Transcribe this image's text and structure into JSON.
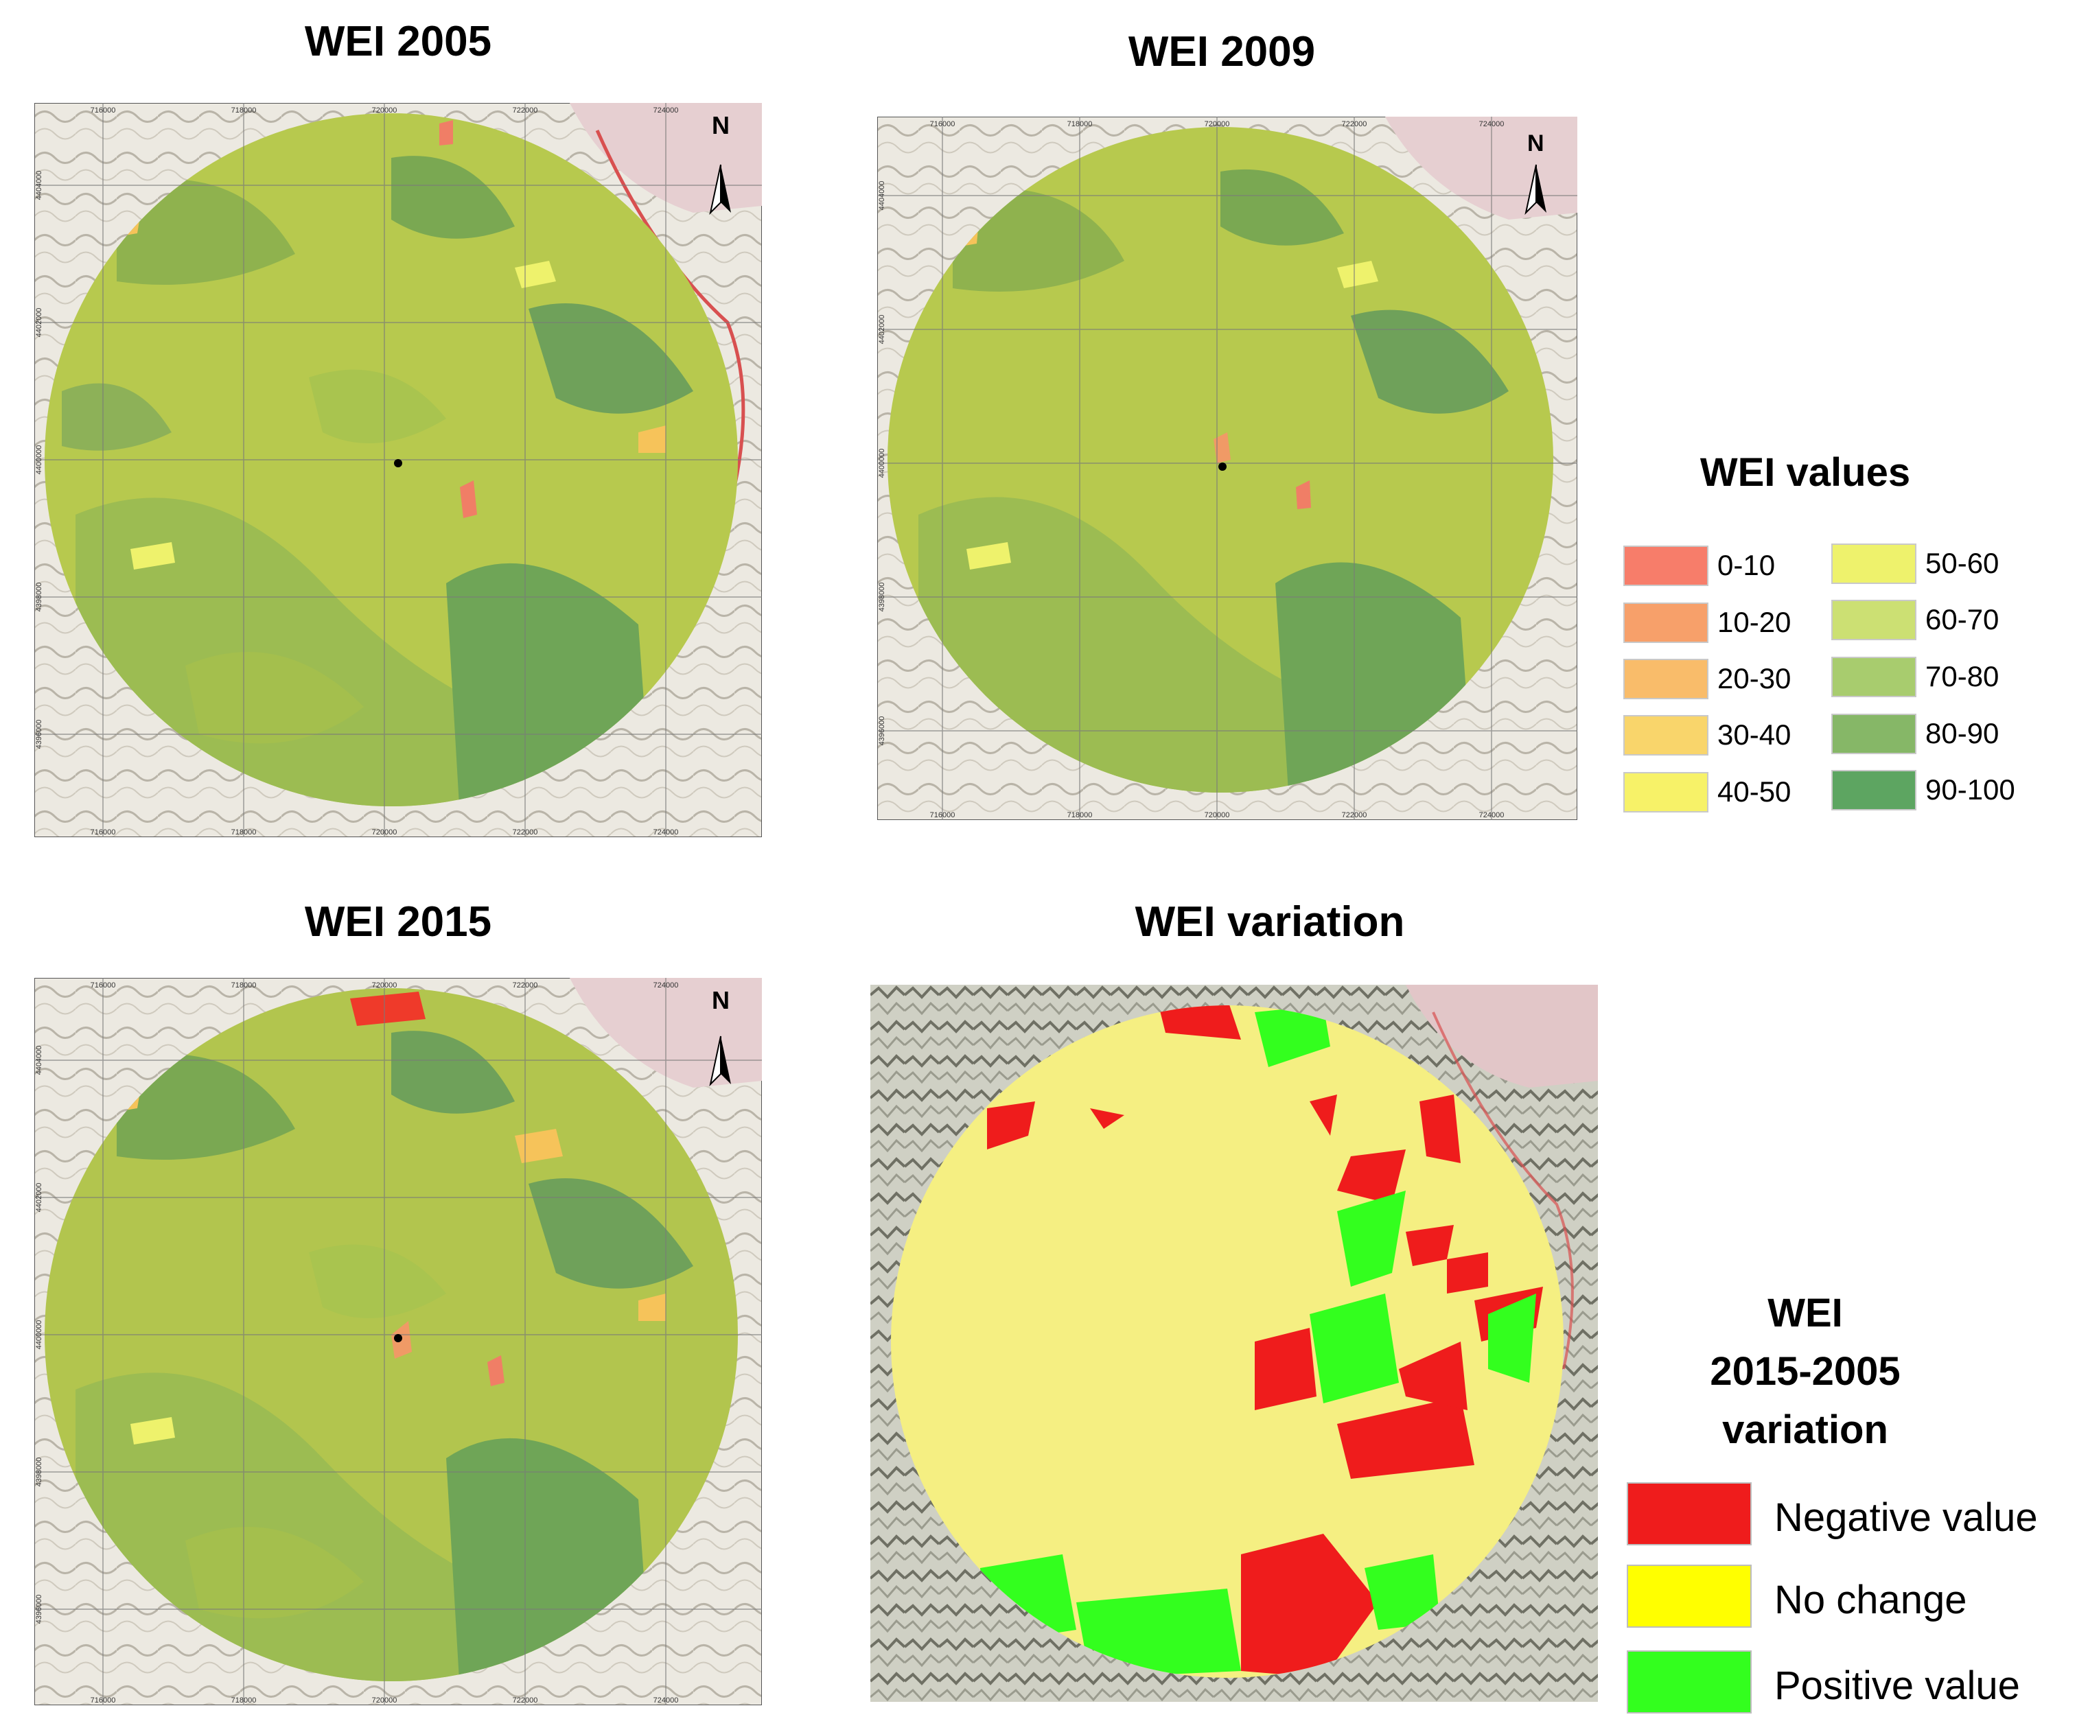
{
  "panels": [
    {
      "title": "WEI 2005",
      "north": "N",
      "top_ticks": [
        "716000",
        "718000",
        "720000",
        "722000",
        "724000"
      ],
      "bottom_ticks": [
        "716000",
        "718000",
        "720000",
        "722000",
        "724000"
      ],
      "side_ticks": [
        "4404000",
        "4402000",
        "4400000",
        "4398000",
        "4396000"
      ]
    },
    {
      "title": "WEI 2009",
      "north": "N",
      "top_ticks": [
        "716000",
        "718000",
        "720000",
        "722000",
        "724000"
      ],
      "bottom_ticks": [
        "716000",
        "718000",
        "720000",
        "722000",
        "724000"
      ],
      "side_ticks": [
        "4404000",
        "4402000",
        "4400000",
        "4398000",
        "4396000"
      ]
    },
    {
      "title": "WEI 2015",
      "north": "N",
      "top_ticks": [
        "716000",
        "718000",
        "720000",
        "722000",
        "724000"
      ],
      "bottom_ticks": [
        "716000",
        "718000",
        "720000",
        "722000",
        "724000"
      ],
      "side_ticks": [
        "4404000",
        "4402000",
        "4400000",
        "4398000",
        "4396000"
      ]
    },
    {
      "title": "WEI variation"
    }
  ],
  "legend_values": {
    "title": "WEI values",
    "items": [
      {
        "label": "0-10",
        "color": "#f77d6a"
      },
      {
        "label": "10-20",
        "color": "#f7a06a"
      },
      {
        "label": "20-30",
        "color": "#f9bc6a"
      },
      {
        "label": "30-40",
        "color": "#f9d56b"
      },
      {
        "label": "40-50",
        "color": "#f7f268"
      },
      {
        "label": "50-60",
        "color": "#eef26c"
      },
      {
        "label": "60-70",
        "color": "#cce073"
      },
      {
        "label": "70-80",
        "color": "#a8cc6e"
      },
      {
        "label": "80-90",
        "color": "#86b767"
      },
      {
        "label": "90-100",
        "color": "#5da561"
      }
    ]
  },
  "legend_variation": {
    "title_line1": "WEI",
    "title_line2": "2015-2005",
    "title_line3": "variation",
    "items": [
      {
        "label": "Negative value",
        "color": "#ef1c1c"
      },
      {
        "label": "No change",
        "color": "#ffff00"
      },
      {
        "label": "Positive value",
        "color": "#33ff1e"
      }
    ]
  }
}
